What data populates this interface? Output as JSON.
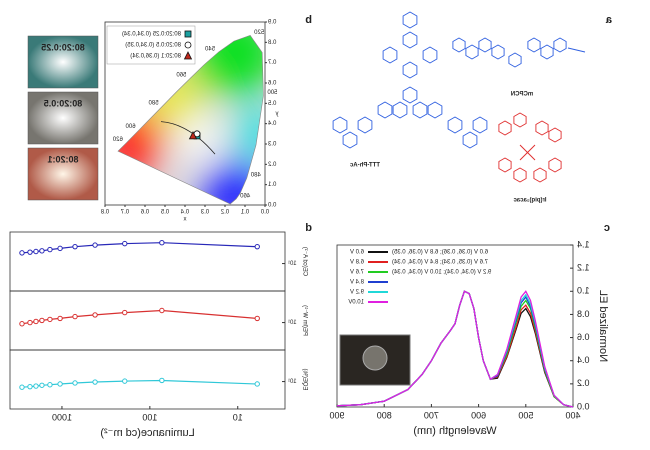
{
  "panel_labels": [
    "a",
    "b",
    "c",
    "d"
  ],
  "structures": [
    "mCPCN",
    "TTT-Ph-Ac",
    "Ir(piq)₂acac"
  ],
  "photos": [
    "80:20:0.25",
    "80:20:0.5",
    "80:20:1"
  ],
  "chart_data": [
    {
      "type": "scatter",
      "xlim": [
        0,
        0.8
      ],
      "ylim": [
        0,
        0.9
      ],
      "xticks": [
        {
          "value": 0,
          "label": "0.0"
        },
        {
          "value": 0.1,
          "label": "0.1"
        },
        {
          "value": 0.2,
          "label": "0.2"
        },
        {
          "value": 0.3,
          "label": "0.3"
        },
        {
          "value": 0.4,
          "label": "0.4"
        },
        {
          "value": 0.5,
          "label": "0.5"
        },
        {
          "value": 0.6,
          "label": "0.6"
        },
        {
          "value": 0.7,
          "label": "0.7"
        },
        {
          "value": 0.8,
          "label": "0.8"
        }
      ],
      "yticks": [
        {
          "value": 0,
          "label": "0.0"
        },
        {
          "value": 0.1,
          "label": "0.1"
        },
        {
          "value": 0.2,
          "label": "0.2"
        },
        {
          "value": 0.3,
          "label": "0.3"
        },
        {
          "value": 0.4,
          "label": "0.4"
        },
        {
          "value": 0.5,
          "label": "0.5"
        },
        {
          "value": 0.6,
          "label": "0.6"
        },
        {
          "value": 0.7,
          "label": "0.7"
        },
        {
          "value": 0.8,
          "label": "0.8"
        },
        {
          "value": 0.9,
          "label": "0.9"
        }
      ],
      "locus_labels": [
        460,
        480,
        500,
        520,
        540,
        560,
        580,
        600,
        620
      ],
      "xlabel": "x",
      "ylabel": "y",
      "series": [
        {
          "name": "80:20:0.25 (0.34,0.34)",
          "marker": "square",
          "color": "#1aa0a0",
          "x": [
            0.34
          ],
          "values": [
            0.34
          ]
        },
        {
          "name": "80:20:0.5 (0.34,0.35)",
          "marker": "circle",
          "color": "#ffffff",
          "x": [
            0.34
          ],
          "values": [
            0.35
          ]
        },
        {
          "name": "80:20:1 (0.36,0.34)",
          "marker": "triangle",
          "color": "#c0281c",
          "x": [
            0.36
          ],
          "values": [
            0.34
          ]
        }
      ]
    },
    {
      "type": "line",
      "xlabel": "Wavelength (nm)",
      "ylabel": "Normalized EL",
      "xlim": [
        400,
        900
      ],
      "ylim": [
        0,
        1.4
      ],
      "xticks": [
        400,
        500,
        600,
        700,
        800,
        900
      ],
      "yticks": [
        {
          "value": 0,
          "label": "0.0"
        },
        {
          "value": 0.2,
          "label": "0.2"
        },
        {
          "value": 0.4,
          "label": "0.4"
        },
        {
          "value": 0.6,
          "label": "0.6"
        },
        {
          "value": 0.8,
          "label": "0.8"
        },
        {
          "value": 1,
          "label": "1.0"
        },
        {
          "value": 1.2,
          "label": "1.2"
        },
        {
          "value": 1.4,
          "label": "1.4"
        }
      ],
      "annotations": [
        "6.0 V (0.36, 0.36); 6.8 V (0.36, 0.35)",
        "7.6 V (0.35, 0.34); 8.4 V (0.34, 0.34)",
        "9.2 V (0.34, 0.34); 10.0 V (0.34, 0.34)"
      ],
      "x": [
        400,
        420,
        440,
        460,
        480,
        490,
        500,
        510,
        520,
        540,
        560,
        575,
        590,
        600,
        610,
        620,
        630,
        640,
        650,
        660,
        680,
        700,
        720,
        750,
        800,
        850,
        900
      ],
      "series": [
        {
          "name": "6.0 V",
          "color": "#111111",
          "values": [
            0,
            0.02,
            0.09,
            0.3,
            0.64,
            0.78,
            0.85,
            0.81,
            0.68,
            0.43,
            0.25,
            0.24,
            0.4,
            0.6,
            0.85,
            0.98,
            1.0,
            0.88,
            0.72,
            0.66,
            0.55,
            0.4,
            0.28,
            0.15,
            0.05,
            0.02,
            0.01
          ]
        },
        {
          "name": "6.8 V",
          "color": "#e02020",
          "values": [
            0,
            0.02,
            0.09,
            0.31,
            0.66,
            0.81,
            0.88,
            0.84,
            0.7,
            0.44,
            0.26,
            0.24,
            0.4,
            0.6,
            0.85,
            0.98,
            1.0,
            0.88,
            0.72,
            0.66,
            0.55,
            0.4,
            0.28,
            0.15,
            0.05,
            0.02,
            0.01
          ]
        },
        {
          "name": "7.6 V",
          "color": "#22cc22",
          "values": [
            0,
            0.02,
            0.09,
            0.32,
            0.69,
            0.85,
            0.92,
            0.87,
            0.74,
            0.46,
            0.27,
            0.24,
            0.4,
            0.6,
            0.85,
            0.98,
            1.0,
            0.88,
            0.72,
            0.66,
            0.55,
            0.4,
            0.28,
            0.15,
            0.05,
            0.02,
            0.01
          ]
        },
        {
          "name": "8.4 V",
          "color": "#1f3fd0",
          "values": [
            0,
            0.02,
            0.1,
            0.33,
            0.71,
            0.87,
            0.95,
            0.9,
            0.76,
            0.48,
            0.27,
            0.24,
            0.4,
            0.6,
            0.85,
            0.98,
            1.0,
            0.88,
            0.72,
            0.66,
            0.55,
            0.4,
            0.28,
            0.15,
            0.05,
            0.02,
            0.01
          ]
        },
        {
          "name": "9.2 V",
          "color": "#20d8d8",
          "values": [
            0,
            0.02,
            0.1,
            0.34,
            0.73,
            0.89,
            0.97,
            0.92,
            0.78,
            0.49,
            0.28,
            0.24,
            0.4,
            0.6,
            0.85,
            0.98,
            1.0,
            0.88,
            0.72,
            0.66,
            0.55,
            0.4,
            0.28,
            0.15,
            0.05,
            0.02,
            0.01
          ]
        },
        {
          "name": "10.0V",
          "color": "#e020e0",
          "values": [
            0,
            0.02,
            0.1,
            0.35,
            0.75,
            0.92,
            1.0,
            0.95,
            0.8,
            0.5,
            0.28,
            0.24,
            0.4,
            0.6,
            0.85,
            0.98,
            1.0,
            0.88,
            0.72,
            0.66,
            0.55,
            0.4,
            0.28,
            0.15,
            0.05,
            0.02,
            0.01
          ]
        }
      ]
    },
    {
      "type": "line",
      "log_x": true,
      "log_y": true,
      "ylabel": "CE(cd A⁻¹)",
      "xlim": [
        2.9,
        3900
      ],
      "ylim": [
        3,
        40
      ],
      "yticks": [
        {
          "value": 10,
          "label": "10¹"
        }
      ],
      "x": [
        6,
        73,
        193,
        420,
        710,
        1050,
        1370,
        1690,
        1975,
        2310,
        2850
      ],
      "series": [
        {
          "color": "#2828b8",
          "values": [
            21,
            25,
            24,
            22.5,
            21,
            19.5,
            18.5,
            17.5,
            17,
            16.5,
            16
          ]
        }
      ]
    },
    {
      "type": "line",
      "log_x": true,
      "log_y": true,
      "ylabel": "PE(lm W⁻¹)",
      "xlim": [
        2.9,
        3900
      ],
      "ylim": [
        3,
        40
      ],
      "yticks": [
        {
          "value": 10,
          "label": "10¹"
        }
      ],
      "x": [
        6,
        73,
        193,
        420,
        710,
        1050,
        1370,
        1690,
        1975,
        2310,
        2850
      ],
      "series": [
        {
          "color": "#d83030",
          "values": [
            12,
            17,
            15.5,
            14,
            13,
            12,
            11.5,
            11,
            10.5,
            10,
            9.5
          ]
        }
      ]
    },
    {
      "type": "line",
      "log_x": true,
      "log_y": true,
      "ylabel": "EQE(%)",
      "xlabel": "Luminance(cd m⁻²)",
      "xlim": [
        2.9,
        3900
      ],
      "ylim": [
        3,
        40
      ],
      "yticks": [
        {
          "value": 10,
          "label": "10¹"
        }
      ],
      "xticks": [
        10,
        100,
        1000
      ],
      "x": [
        6,
        73,
        193,
        420,
        710,
        1050,
        1370,
        1690,
        1975,
        2310,
        2850
      ],
      "series": [
        {
          "color": "#30c8d8",
          "values": [
            9,
            10.5,
            10.2,
            9.8,
            9.4,
            9,
            8.7,
            8.5,
            8.2,
            8,
            7.8
          ]
        }
      ]
    }
  ]
}
